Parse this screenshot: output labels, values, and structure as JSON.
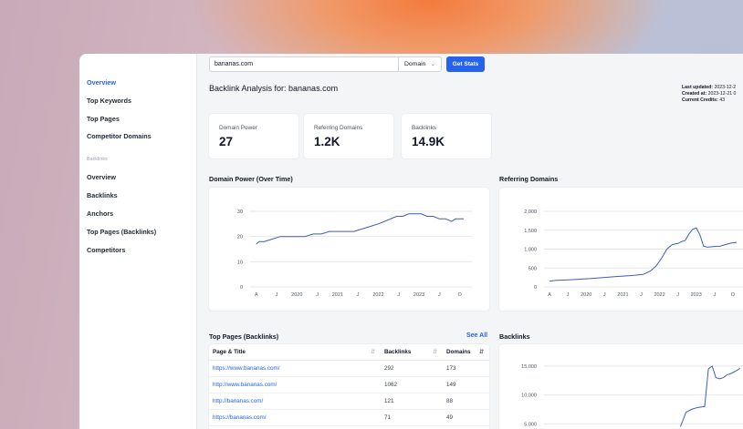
{
  "sidebar": {
    "items": [
      {
        "label": "Overview",
        "active": true
      },
      {
        "label": "Top Keywords"
      },
      {
        "label": "Top Pages"
      },
      {
        "label": "Competitor Domains"
      }
    ],
    "section_label": "Backlinks",
    "backlink_items": [
      {
        "label": "Overview"
      },
      {
        "label": "Backlinks"
      },
      {
        "label": "Anchors"
      },
      {
        "label": "Top Pages (Backlinks)"
      },
      {
        "label": "Competitors"
      }
    ]
  },
  "search": {
    "value": "bananas.com",
    "mode": "Domain",
    "button": "Get Stats"
  },
  "header": {
    "title": "Backlink Analysis for: bananas.com",
    "last_updated_label": "Last updated:",
    "last_updated": "2023-12-2",
    "created_label": "Created at:",
    "created": "2023-12-21 0",
    "credits_label": "Current Credits:",
    "credits": "43"
  },
  "stats": [
    {
      "label": "Domain Power",
      "value": "27"
    },
    {
      "label": "Referring Domains",
      "value": "1.2K"
    },
    {
      "label": "Backlinks",
      "value": "14.9K"
    }
  ],
  "sections": {
    "domain_power": "Domain Power (Over Time)",
    "referring_domains": "Referring Domains",
    "top_pages": "Top Pages (Backlinks)",
    "see_all": "See All",
    "backlinks": "Backlinks"
  },
  "table": {
    "headers": [
      "Page & Title",
      "Backlinks",
      "Domains"
    ],
    "rows": [
      {
        "url": "https://www.bananas.com/",
        "backlinks": "292",
        "domains": "173"
      },
      {
        "url": "http://www.bananas.com/",
        "backlinks": "1062",
        "domains": "149"
      },
      {
        "url": "http://bananas.com/",
        "backlinks": "121",
        "domains": "88"
      },
      {
        "url": "https://bananas.com/",
        "backlinks": "71",
        "domains": "49"
      }
    ]
  },
  "colors": {
    "accent": "#2563eb",
    "line": "#3b5fb5"
  },
  "chart_data": [
    {
      "type": "line",
      "title": "Domain Power (Over Time)",
      "x_ticks": [
        "A",
        "J",
        "2020",
        "J",
        "2021",
        "J",
        "2022",
        "J",
        "2023",
        "J",
        "O"
      ],
      "y_ticks": [
        "0",
        "10",
        "20",
        "30"
      ],
      "ylim": [
        0,
        30
      ],
      "grid": true,
      "series": [
        {
          "x": [
            0,
            0.15,
            0.4,
            0.8,
            1.2,
            1.6,
            2.0,
            2.4,
            2.8,
            3.2,
            3.6,
            4.0,
            4.4,
            4.8,
            5.2,
            5.6,
            6.0,
            6.3,
            6.6,
            6.9,
            7.2,
            7.5,
            7.8,
            8.1,
            8.4,
            8.7,
            9.0,
            9.3,
            9.6,
            9.8,
            10.2
          ],
          "y": [
            17,
            18,
            18,
            19,
            20,
            20,
            20,
            20,
            21,
            21,
            22,
            22,
            22,
            22,
            23,
            24,
            25,
            26,
            27,
            28,
            28,
            29,
            29,
            29,
            28,
            28,
            27,
            27,
            26,
            27,
            27
          ]
        }
      ]
    },
    {
      "type": "line",
      "title": "Referring Domains",
      "x_ticks": [
        "A",
        "J",
        "2020",
        "J",
        "2021",
        "J",
        "2022",
        "J",
        "2023",
        "J",
        "O"
      ],
      "y_ticks": [
        "0",
        "500",
        "1,000",
        "1,500",
        "2,000"
      ],
      "ylim": [
        0,
        2000
      ],
      "grid": true,
      "series": [
        {
          "x": [
            0,
            0.3,
            0.8,
            1.5,
            2.2,
            3.0,
            3.8,
            4.5,
            5.1,
            5.5,
            5.8,
            6.1,
            6.4,
            6.7,
            7.0,
            7.2,
            7.4,
            7.6,
            7.8,
            8.0,
            8.2,
            8.4,
            8.6,
            8.8,
            9.0,
            9.3,
            9.6,
            9.9,
            10.2
          ],
          "y": [
            150,
            170,
            180,
            200,
            220,
            250,
            280,
            300,
            330,
            420,
            550,
            750,
            1000,
            1120,
            1150,
            1200,
            1230,
            1400,
            1520,
            1560,
            1380,
            1080,
            1050,
            1060,
            1070,
            1080,
            1120,
            1160,
            1180
          ]
        }
      ]
    },
    {
      "type": "line",
      "title": "Backlinks",
      "y_ticks": [
        "5,000",
        "10,000",
        "15,000"
      ],
      "ylim": [
        3000,
        17500
      ],
      "grid": true,
      "series": [
        {
          "x": [
            7.0,
            7.3,
            7.6,
            7.9,
            8.1,
            8.3,
            8.5,
            8.7,
            8.9,
            9.1,
            9.3,
            9.5,
            9.7,
            10.0,
            10.2
          ],
          "y": [
            4500,
            7000,
            7500,
            7800,
            7900,
            8000,
            14500,
            15000,
            13000,
            12800,
            13000,
            13500,
            13700,
            14200,
            14600
          ]
        }
      ]
    }
  ]
}
